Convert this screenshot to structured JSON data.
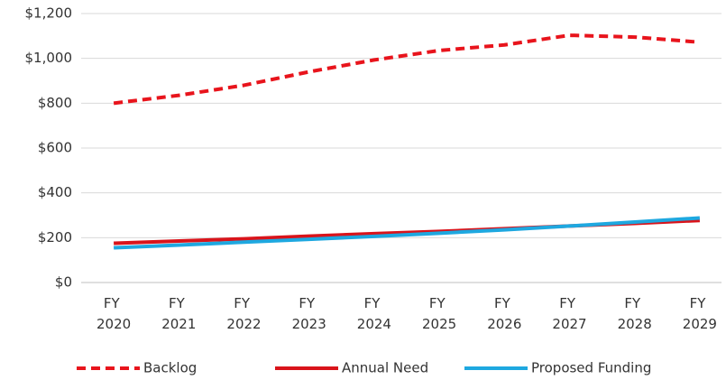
{
  "chart_data": {
    "type": "line",
    "categories": [
      "FY 2020",
      "FY 2021",
      "FY 2022",
      "FY 2023",
      "FY 2024",
      "FY 2025",
      "FY 2026",
      "FY 2027",
      "FY 2028",
      "FY 2029"
    ],
    "series": [
      {
        "name": "Backlog",
        "color": "#e8141c",
        "style": "dashed",
        "values": [
          800,
          835,
          880,
          940,
          993,
          1035,
          1060,
          1103,
          1095,
          1072
        ]
      },
      {
        "name": "Annual Need",
        "color": "#d9141b",
        "style": "solid",
        "values": [
          175,
          185,
          195,
          207,
          218,
          228,
          240,
          252,
          264,
          277
        ]
      },
      {
        "name": "Proposed Funding",
        "color": "#1ea8e0",
        "style": "solid",
        "values": [
          155,
          167,
          180,
          193,
          206,
          220,
          235,
          252,
          270,
          288
        ]
      }
    ],
    "ylim": [
      0,
      1200
    ],
    "yticks": [
      {
        "value": 0,
        "label": "$0"
      },
      {
        "value": 200,
        "label": "$200"
      },
      {
        "value": 400,
        "label": "$400"
      },
      {
        "value": 600,
        "label": "$600"
      },
      {
        "value": 800,
        "label": "$800"
      },
      {
        "value": 1000,
        "label": "$1,000"
      },
      {
        "value": 1200,
        "label": "$1,200"
      }
    ],
    "grid": true,
    "legend": "bottom"
  }
}
